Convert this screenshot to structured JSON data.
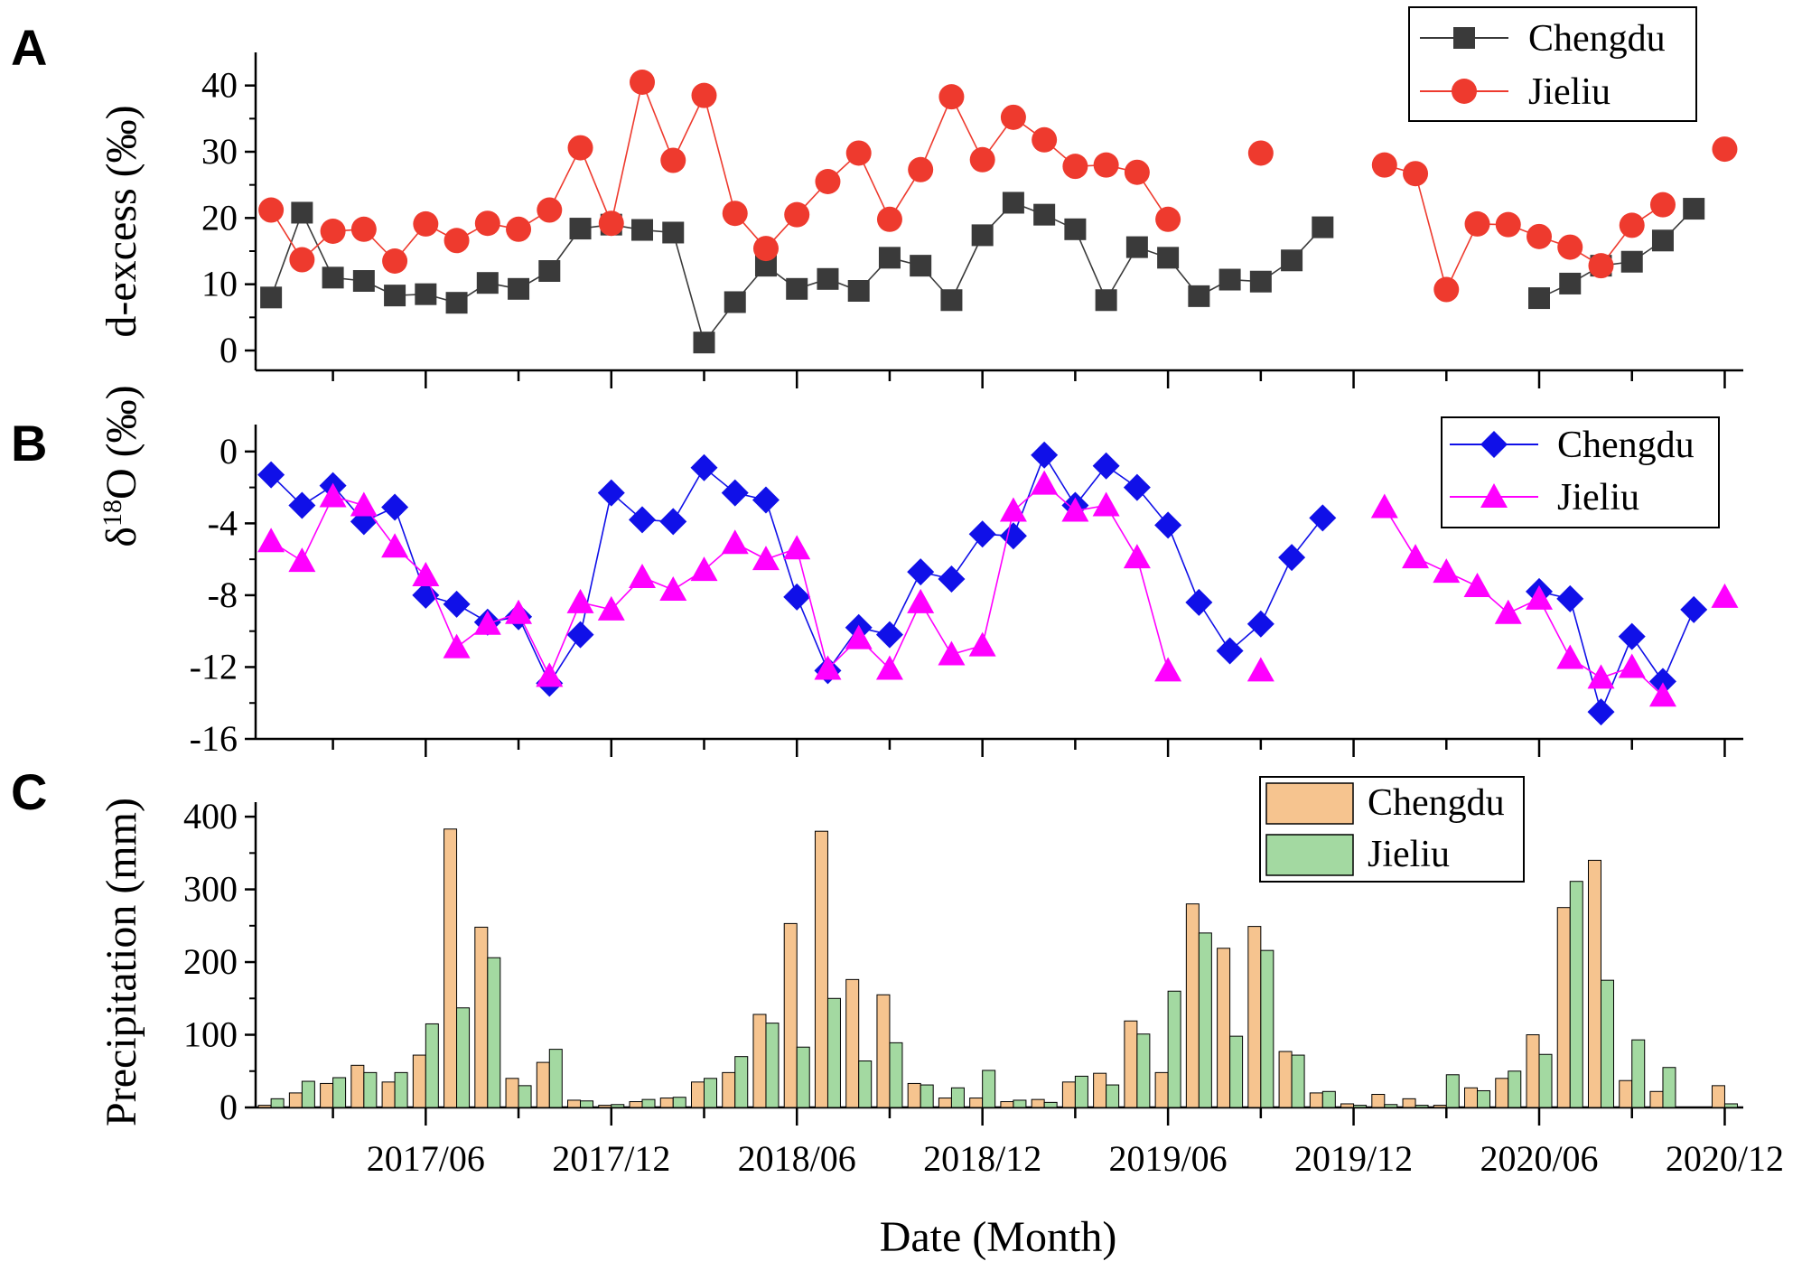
{
  "figure": {
    "xlabel": "Date (Month)"
  },
  "chart_data": [
    {
      "panel": "A",
      "type": "line",
      "ylabel": "d-excess (‰)",
      "ylim": [
        -3,
        45
      ],
      "yticks": [
        0,
        10,
        20,
        30,
        40
      ],
      "x_axis": "month index (0 = 2017/01, 48 = 2021/01)",
      "xlim": [
        -0.5,
        47.6
      ],
      "series": [
        {
          "name": "Chengdu",
          "color": "#3a3a3a",
          "marker": "square",
          "points": [
            [
              0,
              8.0
            ],
            [
              1,
              20.8
            ],
            [
              2,
              11.0
            ],
            [
              3,
              10.5
            ],
            [
              4,
              8.3
            ],
            [
              5,
              8.5
            ],
            [
              6,
              7.2
            ],
            [
              7,
              10.2
            ],
            [
              8,
              9.3
            ],
            [
              9,
              12.0
            ],
            [
              10,
              18.4
            ],
            [
              11,
              19.0
            ],
            [
              12,
              18.2
            ],
            [
              13,
              17.8
            ],
            [
              14,
              1.2
            ],
            [
              15,
              7.3
            ],
            [
              16,
              12.8
            ],
            [
              17,
              9.3
            ],
            [
              18,
              10.8
            ],
            [
              19,
              9.0
            ],
            [
              20,
              14.0
            ],
            [
              21,
              12.8
            ],
            [
              22,
              7.6
            ],
            [
              23,
              17.4
            ],
            [
              24,
              22.3
            ],
            [
              25,
              20.5
            ],
            [
              26,
              18.3
            ],
            [
              27,
              7.6
            ],
            [
              28,
              15.6
            ],
            [
              29,
              14.0
            ],
            [
              30,
              8.2
            ],
            [
              31,
              10.7
            ],
            [
              32,
              10.4
            ],
            [
              33,
              13.6
            ],
            [
              34,
              18.6
            ],
            [
              41,
              7.9
            ],
            [
              42,
              10.1
            ],
            [
              43,
              12.8
            ],
            [
              44,
              13.4
            ],
            [
              45,
              16.6
            ],
            [
              46,
              21.4
            ]
          ]
        },
        {
          "name": "Jieliu",
          "color": "#ee3a2e",
          "marker": "circle",
          "points": [
            [
              0,
              21.2
            ],
            [
              1,
              13.7
            ],
            [
              2,
              18.0
            ],
            [
              3,
              18.3
            ],
            [
              4,
              13.5
            ],
            [
              5,
              19.1
            ],
            [
              6,
              16.6
            ],
            [
              7,
              19.2
            ],
            [
              8,
              18.3
            ],
            [
              9,
              21.2
            ],
            [
              10,
              30.6
            ],
            [
              11,
              19.2
            ],
            [
              12,
              40.5
            ],
            [
              13,
              28.7
            ],
            [
              14,
              38.5
            ],
            [
              15,
              20.7
            ],
            [
              16,
              15.4
            ],
            [
              17,
              20.5
            ],
            [
              18,
              25.5
            ],
            [
              19,
              29.8
            ],
            [
              20,
              19.8
            ],
            [
              21,
              27.3
            ],
            [
              22,
              38.3
            ],
            [
              23,
              28.8
            ],
            [
              24,
              35.2
            ],
            [
              25,
              31.8
            ],
            [
              26,
              27.8
            ],
            [
              27,
              28.0
            ],
            [
              28,
              26.9
            ],
            [
              29,
              19.8
            ],
            [
              32,
              29.8
            ],
            [
              36,
              28.0
            ],
            [
              37,
              26.7
            ],
            [
              38,
              9.2
            ],
            [
              39,
              19.1
            ],
            [
              40,
              19.0
            ],
            [
              41,
              17.2
            ],
            [
              42,
              15.6
            ],
            [
              43,
              12.8
            ],
            [
              44,
              18.9
            ],
            [
              45,
              22.0
            ],
            [
              47,
              30.4
            ]
          ]
        }
      ]
    },
    {
      "panel": "B",
      "type": "line",
      "ylabel_prefix": "δ",
      "ylabel_sup": "18",
      "ylabel_suffix": "O (‰)",
      "ylim": [
        -16,
        1.5
      ],
      "yticks": [
        0,
        -4,
        -8,
        -12,
        -16
      ],
      "x_axis": "month index (0 = 2017/01, 48 = 2021/01)",
      "xlim": [
        -0.5,
        47.6
      ],
      "series": [
        {
          "name": "Chengdu",
          "color": "#1010e8",
          "marker": "diamond",
          "points": [
            [
              0,
              -1.3
            ],
            [
              1,
              -3.0
            ],
            [
              2,
              -1.9
            ],
            [
              3,
              -3.9
            ],
            [
              4,
              -3.1
            ],
            [
              5,
              -8.0
            ],
            [
              6,
              -8.5
            ],
            [
              7,
              -9.5
            ],
            [
              8,
              -9.2
            ],
            [
              9,
              -12.9
            ],
            [
              10,
              -10.2
            ],
            [
              11,
              -2.3
            ],
            [
              12,
              -3.8
            ],
            [
              13,
              -3.9
            ],
            [
              14,
              -0.9
            ],
            [
              15,
              -2.3
            ],
            [
              16,
              -2.7
            ],
            [
              17,
              -8.1
            ],
            [
              18,
              -12.2
            ],
            [
              19,
              -9.8
            ],
            [
              20,
              -10.2
            ],
            [
              21,
              -6.7
            ],
            [
              22,
              -7.1
            ],
            [
              23,
              -4.6
            ],
            [
              24,
              -4.7
            ],
            [
              25,
              -0.2
            ],
            [
              26,
              -3.0
            ],
            [
              27,
              -0.8
            ],
            [
              28,
              -2.0
            ],
            [
              29,
              -4.1
            ],
            [
              30,
              -8.4
            ],
            [
              31,
              -11.1
            ],
            [
              32,
              -9.6
            ],
            [
              33,
              -5.9
            ],
            [
              34,
              -3.7
            ],
            [
              41,
              -7.8
            ],
            [
              42,
              -8.2
            ],
            [
              43,
              -14.5
            ],
            [
              44,
              -10.3
            ],
            [
              45,
              -12.8
            ],
            [
              46,
              -8.8
            ]
          ]
        },
        {
          "name": "Jieliu",
          "color": "#ff00ff",
          "marker": "triangle",
          "points": [
            [
              0,
              -5.0
            ],
            [
              1,
              -6.1
            ],
            [
              2,
              -2.5
            ],
            [
              3,
              -3.0
            ],
            [
              4,
              -5.3
            ],
            [
              5,
              -6.9
            ],
            [
              6,
              -10.9
            ],
            [
              7,
              -9.6
            ],
            [
              8,
              -9.0
            ],
            [
              9,
              -12.5
            ],
            [
              10,
              -8.4
            ],
            [
              11,
              -8.8
            ],
            [
              12,
              -7.0
            ],
            [
              13,
              -7.7
            ],
            [
              14,
              -6.6
            ],
            [
              15,
              -5.1
            ],
            [
              16,
              -6.0
            ],
            [
              17,
              -5.4
            ],
            [
              18,
              -12.1
            ],
            [
              19,
              -10.4
            ],
            [
              20,
              -12.1
            ],
            [
              21,
              -8.4
            ],
            [
              22,
              -11.3
            ],
            [
              23,
              -10.8
            ],
            [
              24,
              -3.3
            ],
            [
              25,
              -1.8
            ],
            [
              26,
              -3.3
            ],
            [
              27,
              -3.0
            ],
            [
              28,
              -5.9
            ],
            [
              29,
              -12.2
            ],
            [
              32,
              -12.2
            ],
            [
              36,
              -3.1
            ],
            [
              37,
              -5.9
            ],
            [
              38,
              -6.7
            ],
            [
              39,
              -7.5
            ],
            [
              40,
              -9.0
            ],
            [
              41,
              -8.2
            ],
            [
              42,
              -11.5
            ],
            [
              43,
              -12.6
            ],
            [
              44,
              -12.0
            ],
            [
              45,
              -13.6
            ],
            [
              47,
              -8.1
            ]
          ]
        }
      ]
    },
    {
      "panel": "C",
      "type": "bar",
      "ylabel": "Precipitation (mm)",
      "ylim": [
        0,
        420
      ],
      "yticks": [
        0,
        100,
        200,
        300,
        400
      ],
      "x_axis": "month index (0 = 2017/01, 48 = 2021/01)",
      "xlim": [
        -0.5,
        47.6
      ],
      "xticks": [
        {
          "pos": 5,
          "label": "2017/06"
        },
        {
          "pos": 11,
          "label": "2017/12"
        },
        {
          "pos": 17,
          "label": "2018/06"
        },
        {
          "pos": 23,
          "label": "2018/12"
        },
        {
          "pos": 29,
          "label": "2019/06"
        },
        {
          "pos": 35,
          "label": "2019/12"
        },
        {
          "pos": 41,
          "label": "2020/06"
        },
        {
          "pos": 47,
          "label": "2020/12"
        }
      ],
      "series": [
        {
          "name": "Chengdu",
          "color": "#f6c48f",
          "values": [
            3,
            20,
            33,
            58,
            35,
            72,
            383,
            248,
            40,
            62,
            10,
            3,
            8,
            13,
            35,
            48,
            128,
            253,
            380,
            176,
            155,
            33,
            13,
            13,
            8,
            11,
            35,
            47,
            119,
            48,
            280,
            219,
            249,
            77,
            20,
            5,
            18,
            12,
            3,
            27,
            40,
            100,
            275,
            340,
            37,
            22,
            0,
            30
          ]
        },
        {
          "name": "Jieliu",
          "color": "#a3d9a1",
          "values": [
            12,
            36,
            41,
            48,
            48,
            115,
            137,
            206,
            30,
            80,
            9,
            4,
            11,
            14,
            40,
            70,
            116,
            83,
            150,
            64,
            89,
            31,
            27,
            51,
            10,
            7,
            43,
            31,
            101,
            160,
            240,
            98,
            216,
            72,
            22,
            3,
            4,
            3,
            45,
            23,
            50,
            73,
            311,
            175,
            93,
            55,
            0,
            5
          ]
        }
      ]
    }
  ]
}
